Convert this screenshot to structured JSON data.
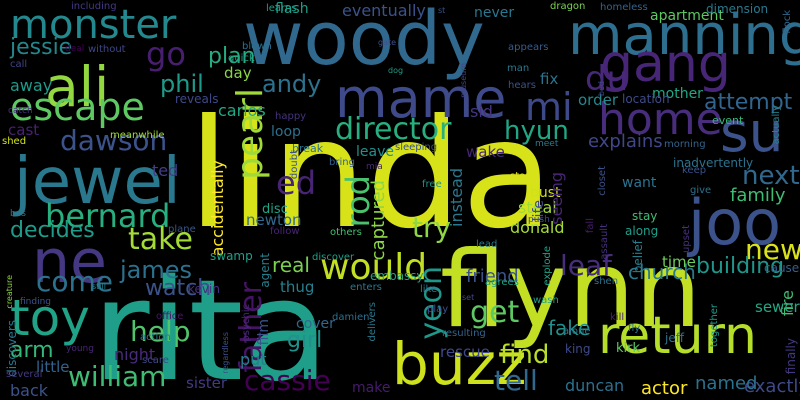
{
  "word_cloud": {
    "background": "#000000",
    "words": [
      {
        "text": "linda",
        "color": "#d8e219"
      },
      {
        "text": "rita",
        "color": "#1f9e89"
      },
      {
        "text": "woody",
        "color": "#31688e"
      },
      {
        "text": "flynn",
        "color": "#c2df23"
      },
      {
        "text": "manning",
        "color": "#2e6e8e"
      },
      {
        "text": "jewel",
        "color": "#2a788e"
      },
      {
        "text": "buzz",
        "color": "#cde11d"
      },
      {
        "text": "monster",
        "color": "#23898e"
      },
      {
        "text": "ali",
        "color": "#93d741"
      },
      {
        "text": "mame",
        "color": "#3e4a89"
      },
      {
        "text": "su",
        "color": "#3b528b"
      },
      {
        "text": "joo",
        "color": "#3b528b"
      },
      {
        "text": "gang",
        "color": "#482677"
      },
      {
        "text": "toy",
        "color": "#20a386"
      },
      {
        "text": "ne",
        "color": "#453781"
      },
      {
        "text": "return",
        "color": "#b5de2b"
      },
      {
        "text": "escape",
        "color": "#5ec962"
      },
      {
        "text": "home",
        "color": "#472d7b"
      },
      {
        "text": "bernard",
        "color": "#29af7f"
      },
      {
        "text": "pearl",
        "color": "#a0da39"
      },
      {
        "text": "would",
        "color": "#c2df23"
      },
      {
        "text": "director",
        "color": "#29af7f"
      },
      {
        "text": "william",
        "color": "#3fbc73"
      },
      {
        "text": "cassie",
        "color": "#440154"
      },
      {
        "text": "come",
        "color": "#2c728e"
      },
      {
        "text": "dawson",
        "color": "#3b528b"
      },
      {
        "text": "tell",
        "color": "#31688e"
      },
      {
        "text": "go",
        "color": "#481f70"
      },
      {
        "text": "mi",
        "color": "#3e4989"
      },
      {
        "text": "du",
        "color": "#482878"
      },
      {
        "text": "take",
        "color": "#a5db36"
      },
      {
        "text": "jessie",
        "color": "#24878e"
      },
      {
        "text": "phil",
        "color": "#1f9a8a"
      },
      {
        "text": "andy",
        "color": "#2c728e"
      },
      {
        "text": "plan",
        "color": "#25ac82"
      },
      {
        "text": "rod",
        "color": "#4ac16d"
      },
      {
        "text": "get",
        "color": "#5ec962"
      },
      {
        "text": "father",
        "color": "#471365"
      },
      {
        "text": "hyun",
        "color": "#22a785"
      },
      {
        "text": "help",
        "color": "#50c46a"
      },
      {
        "text": "leaf",
        "color": "#472d7b"
      },
      {
        "text": "next",
        "color": "#31688e"
      },
      {
        "text": "new",
        "color": "#dae319"
      },
      {
        "text": "james",
        "color": "#2d708e"
      },
      {
        "text": "attempt",
        "color": "#32658e"
      },
      {
        "text": "arm",
        "color": "#35b779"
      },
      {
        "text": "find",
        "color": "#b8de29"
      },
      {
        "text": "ed",
        "color": "#482475"
      },
      {
        "text": "yeon",
        "color": "#1f988b"
      },
      {
        "text": "try",
        "color": "#90d743"
      },
      {
        "text": "decides",
        "color": "#1e9c89"
      },
      {
        "text": "church",
        "color": "#2a788e"
      },
      {
        "text": "watch",
        "color": "#3b528b"
      },
      {
        "text": "friend",
        "color": "#3b528b"
      },
      {
        "text": "captured",
        "color": "#8bd646"
      },
      {
        "text": "girl",
        "color": "#21918c"
      },
      {
        "text": "real",
        "color": "#7ad151"
      },
      {
        "text": "explains",
        "color": "#404688"
      },
      {
        "text": "fake",
        "color": "#21918c"
      },
      {
        "text": "building",
        "color": "#1f968b"
      },
      {
        "text": "family",
        "color": "#3fbc73"
      },
      {
        "text": "duncan",
        "color": "#2d708e"
      },
      {
        "text": "sister",
        "color": "#443a83"
      },
      {
        "text": "exactly",
        "color": "#3e4a89"
      },
      {
        "text": "named",
        "color": "#2c728e"
      },
      {
        "text": "actor",
        "color": "#fde725"
      },
      {
        "text": "fire",
        "color": "#3fbc73"
      },
      {
        "text": "night",
        "color": "#472c7a"
      },
      {
        "text": "away",
        "color": "#1e9b8a"
      },
      {
        "text": "cast",
        "color": "#482173"
      },
      {
        "text": "thug",
        "color": "#27808e"
      },
      {
        "text": "want",
        "color": "#2c728e"
      },
      {
        "text": "put",
        "color": "#277f8e"
      },
      {
        "text": "rescue",
        "color": "#3f4889"
      },
      {
        "text": "order",
        "color": "#23898e"
      },
      {
        "text": "film",
        "color": "#3b528b"
      },
      {
        "text": "day",
        "color": "#89d548"
      },
      {
        "text": "ted",
        "color": "#433e85"
      },
      {
        "text": "carlos",
        "color": "#22a884"
      },
      {
        "text": "loop",
        "color": "#2d708e"
      },
      {
        "text": "cover",
        "color": "#31688e"
      },
      {
        "text": "back",
        "color": "#3b528b"
      },
      {
        "text": "little",
        "color": "#33638d"
      },
      {
        "text": "discovers",
        "color": "#2a788e"
      },
      {
        "text": "accidentally",
        "color": "#fde725"
      },
      {
        "text": "agent",
        "color": "#27808e"
      },
      {
        "text": "leave",
        "color": "#21918c"
      },
      {
        "text": "donald",
        "color": "#a8db34"
      },
      {
        "text": "steal",
        "color": "#a0da39"
      },
      {
        "text": "bust",
        "color": "#cde11d"
      },
      {
        "text": "life",
        "color": "#3e4989"
      },
      {
        "text": "instead",
        "color": "#2a788e"
      },
      {
        "text": "seeing",
        "color": "#482677"
      },
      {
        "text": "wake",
        "color": "#482677"
      },
      {
        "text": "sid",
        "color": "#453581"
      },
      {
        "text": "mother",
        "color": "#22a785"
      },
      {
        "text": "time",
        "color": "#6ccd5a"
      },
      {
        "text": "fix",
        "color": "#2c728e"
      },
      {
        "text": "newton",
        "color": "#31688e"
      },
      {
        "text": "disc",
        "color": "#20a486"
      },
      {
        "text": "sewer",
        "color": "#22a884"
      },
      {
        "text": "eventually",
        "color": "#3b528b"
      },
      {
        "text": "never",
        "color": "#2a778e"
      },
      {
        "text": "flash",
        "color": "#1f9e89"
      },
      {
        "text": "kevin",
        "color": "#46307e"
      },
      {
        "text": "make",
        "color": "#481b6d"
      },
      {
        "text": "kirk",
        "color": "#5ec962"
      },
      {
        "text": "jeff",
        "color": "#2c728e"
      },
      {
        "text": "apartment",
        "color": "#5ec962"
      },
      {
        "text": "dragon",
        "color": "#7ad151"
      },
      {
        "text": "homeless",
        "color": "#33638d"
      },
      {
        "text": "dimension",
        "color": "#2a788e"
      },
      {
        "text": "flock",
        "color": "#31688e"
      },
      {
        "text": "learns",
        "color": "#1f9e89"
      },
      {
        "text": "including",
        "color": "#443983"
      },
      {
        "text": "without",
        "color": "#3f4788"
      },
      {
        "text": "quick",
        "color": "#20a486"
      },
      {
        "text": "blown",
        "color": "#2d708e"
      },
      {
        "text": "gate",
        "color": "#3b528b"
      },
      {
        "text": "museum",
        "color": "#414487"
      },
      {
        "text": "appears",
        "color": "#365c8d"
      },
      {
        "text": "hears",
        "color": "#3b528b"
      },
      {
        "text": "man",
        "color": "#2a788e"
      },
      {
        "text": "location",
        "color": "#3e4989"
      },
      {
        "text": "event",
        "color": "#35b779"
      },
      {
        "text": "actually",
        "color": "#27808e"
      },
      {
        "text": "call",
        "color": "#414487"
      },
      {
        "text": "catch",
        "color": "#46337e"
      },
      {
        "text": "deal",
        "color": "#440154"
      },
      {
        "text": "reveals",
        "color": "#3e4989"
      },
      {
        "text": "happy",
        "color": "#46327e"
      },
      {
        "text": "meanwhile",
        "color": "#a2da37"
      },
      {
        "text": "shed",
        "color": "#d0e11c"
      },
      {
        "text": "break",
        "color": "#2c728e"
      },
      {
        "text": "mia",
        "color": "#482878"
      },
      {
        "text": "bring",
        "color": "#355f8d"
      },
      {
        "text": "sleeping",
        "color": "#3b528b"
      },
      {
        "text": "meet",
        "color": "#2a788e"
      },
      {
        "text": "morning",
        "color": "#33638d"
      },
      {
        "text": "inadvertently",
        "color": "#2c728e"
      },
      {
        "text": "keep",
        "color": "#3b528b"
      },
      {
        "text": "give",
        "color": "#2d708e"
      },
      {
        "text": "stay",
        "color": "#3fbc73"
      },
      {
        "text": "along",
        "color": "#1f9e89"
      },
      {
        "text": "stop",
        "color": "#d8e219"
      },
      {
        "text": "free",
        "color": "#21918c"
      },
      {
        "text": "push",
        "color": "#3e4989"
      },
      {
        "text": "lead",
        "color": "#2a788e"
      },
      {
        "text": "explode",
        "color": "#20a386"
      },
      {
        "text": "agrees",
        "color": "#1fa188"
      },
      {
        "text": "enters",
        "color": "#2a788e"
      },
      {
        "text": "embassy",
        "color": "#20a486"
      },
      {
        "text": "discover",
        "color": "#1fa187"
      },
      {
        "text": "swamp",
        "color": "#1fa088"
      },
      {
        "text": "others",
        "color": "#44bf70"
      },
      {
        "text": "follow",
        "color": "#482475"
      },
      {
        "text": "plane",
        "color": "#39568c"
      },
      {
        "text": "office",
        "color": "#481467"
      },
      {
        "text": "action",
        "color": "#2a788e"
      },
      {
        "text": "scare",
        "color": "#3e4989"
      },
      {
        "text": "still",
        "color": "#26828e"
      },
      {
        "text": "creature",
        "color": "#8fd744"
      },
      {
        "text": "finding",
        "color": "#3b528b"
      },
      {
        "text": "young",
        "color": "#482475"
      },
      {
        "text": "several",
        "color": "#443983"
      },
      {
        "text": "bos",
        "color": "#2a788e"
      },
      {
        "text": "doubt",
        "color": "#3b528b"
      },
      {
        "text": "damien",
        "color": "#2d708e"
      },
      {
        "text": "delivers",
        "color": "#2a788e"
      },
      {
        "text": "resulting",
        "color": "#33638d"
      },
      {
        "text": "wash",
        "color": "#1f9e89"
      },
      {
        "text": "alone",
        "color": "#2c728e"
      },
      {
        "text": "king",
        "color": "#3e4989"
      },
      {
        "text": "kill",
        "color": "#482475"
      },
      {
        "text": "fly",
        "color": "#2c728e"
      },
      {
        "text": "belief",
        "color": "#277f8e"
      },
      {
        "text": "together",
        "color": "#1f9a8a"
      },
      {
        "text": "finally",
        "color": "#453781"
      },
      {
        "text": "cause",
        "color": "#355f8d"
      },
      {
        "text": "upset",
        "color": "#46327e"
      },
      {
        "text": "dog",
        "color": "#1f9e89"
      },
      {
        "text": "st",
        "color": "#3b528b"
      },
      {
        "text": "set",
        "color": "#3e4989"
      },
      {
        "text": "play",
        "color": "#3b528b"
      },
      {
        "text": "like",
        "color": "#2a788e"
      },
      {
        "text": "psychic",
        "color": "#482878"
      },
      {
        "text": "regardless",
        "color": "#3b528b"
      },
      {
        "text": "fall",
        "color": "#481b6d"
      },
      {
        "text": "assault",
        "color": "#46307e"
      },
      {
        "text": "closet",
        "color": "#3b528b"
      },
      {
        "text": "shen",
        "color": "#2c728e"
      },
      {
        "text": "bed",
        "color": "#3e4989"
      }
    ]
  }
}
